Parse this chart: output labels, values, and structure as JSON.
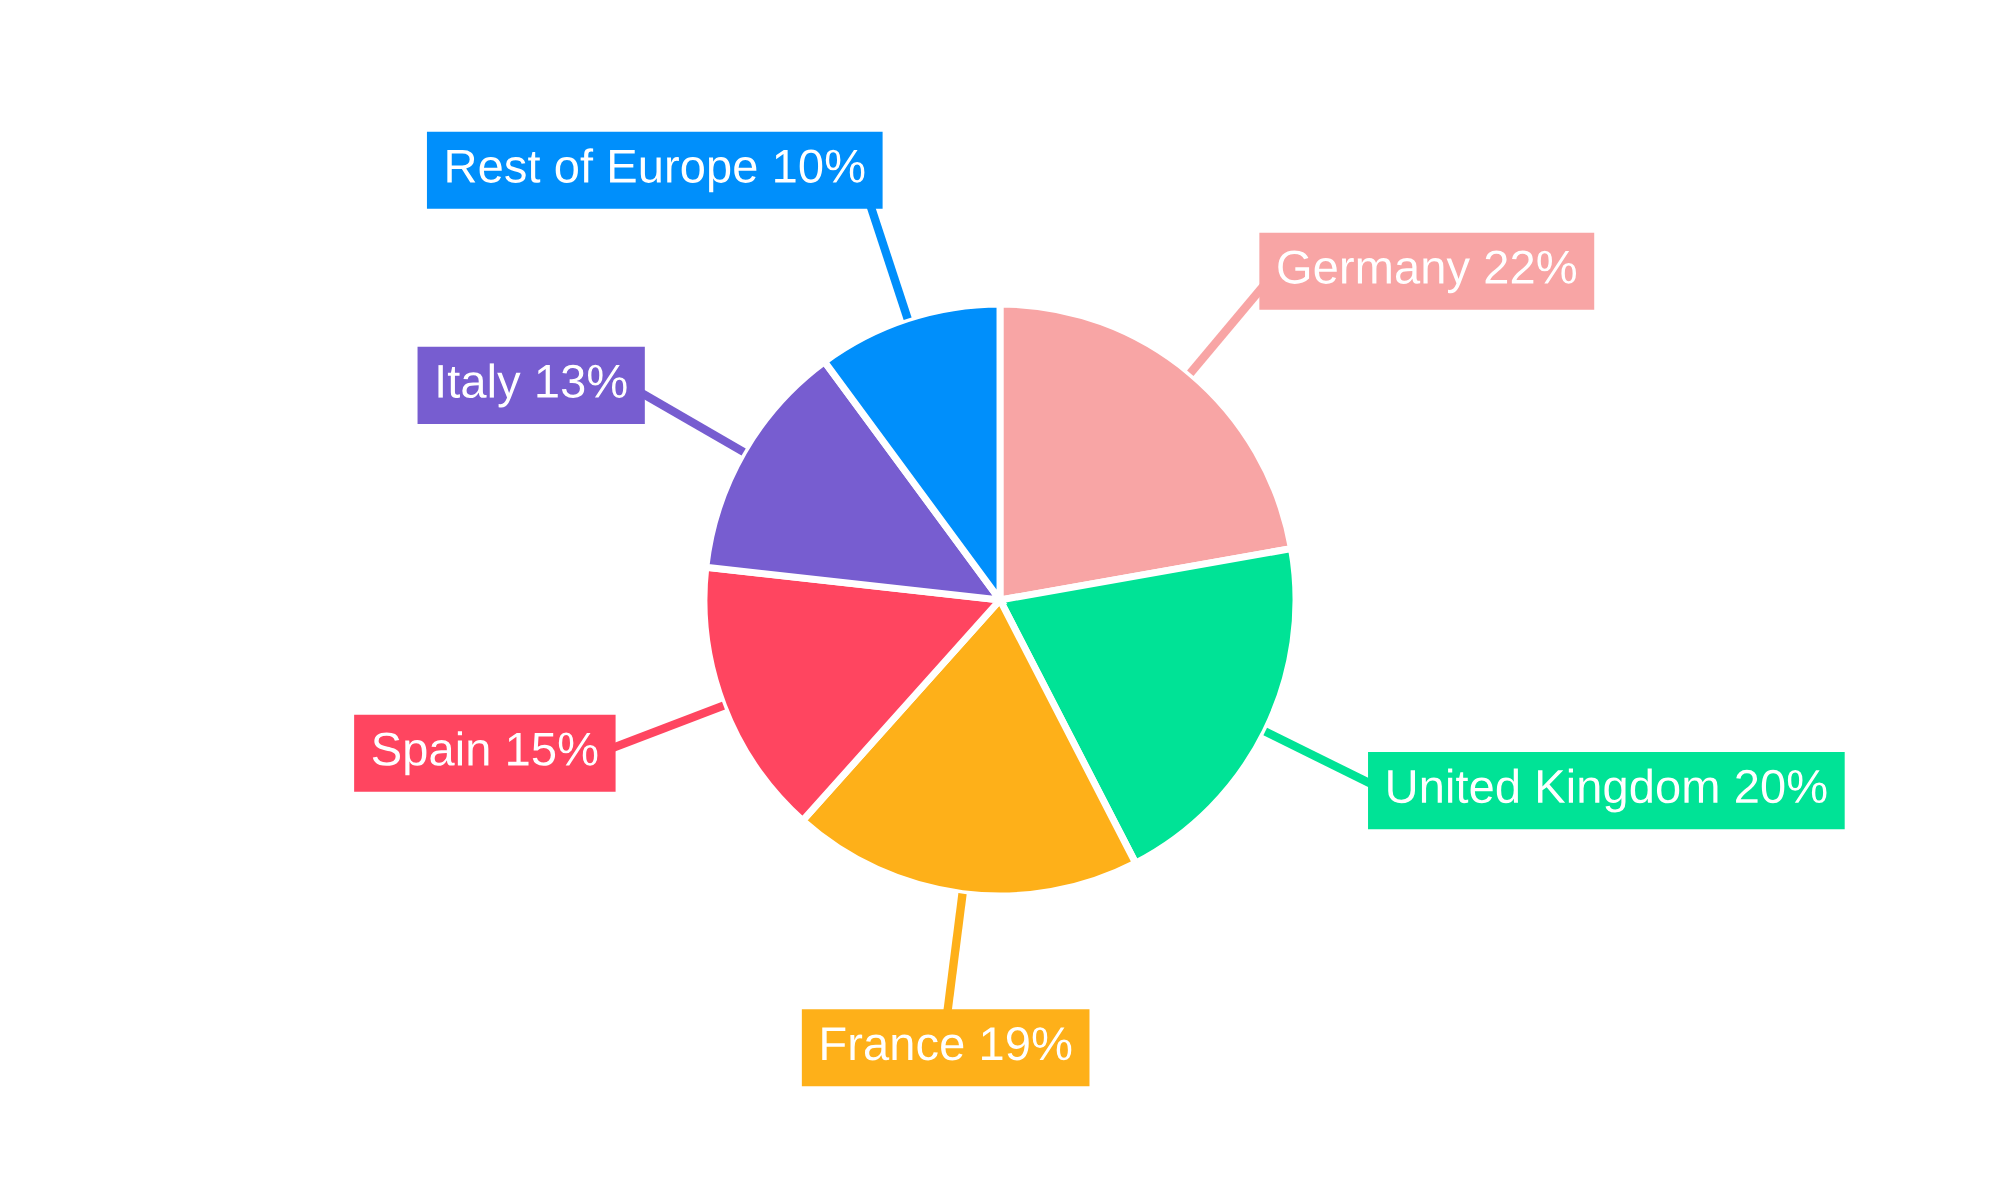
{
  "chart_data": {
    "type": "pie",
    "categories": [
      "Germany",
      "United Kingdom",
      "France",
      "Spain",
      "Italy",
      "Rest of Europe"
    ],
    "values": [
      22,
      20,
      19,
      15,
      13,
      10
    ],
    "value_labels": [
      "22%",
      "20%",
      "19%",
      "15%",
      "13%",
      "10%"
    ],
    "colors": [
      "#f8a5a5",
      "#00e396",
      "#feb019",
      "#ff4560",
      "#775dd0",
      "#008ffb"
    ],
    "legend": false
  }
}
